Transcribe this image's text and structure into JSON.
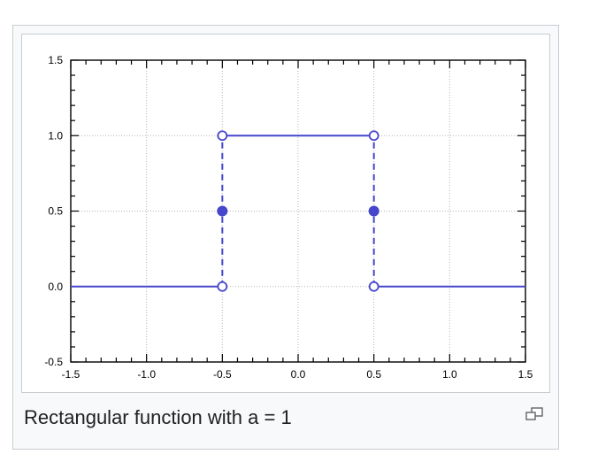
{
  "caption": "Rectangular function with a = 1",
  "icons": {
    "magnify": "magnify-clip-icon"
  },
  "colors": {
    "series": "#4646cc",
    "frame": "#000000",
    "grid": "#b4b4b4",
    "border": "#c8ccd1"
  },
  "chart_data": {
    "type": "line",
    "title": "",
    "xlabel": "",
    "ylabel": "",
    "xlim": [
      -1.5,
      1.5
    ],
    "ylim": [
      -0.5,
      1.5
    ],
    "x_ticks": [
      "-1.5",
      "-1.0",
      "-0.5",
      "0.0",
      "0.5",
      "1.0",
      "1.5"
    ],
    "y_ticks": [
      "-0.5",
      "0.0",
      "0.5",
      "1.0",
      "1.5"
    ],
    "grid": true,
    "segments": [
      {
        "style": "solid",
        "points": [
          [
            -1.5,
            0
          ],
          [
            -0.5,
            0
          ]
        ]
      },
      {
        "style": "solid",
        "points": [
          [
            -0.5,
            1
          ],
          [
            0.5,
            1
          ]
        ]
      },
      {
        "style": "solid",
        "points": [
          [
            0.5,
            0
          ],
          [
            1.5,
            0
          ]
        ]
      },
      {
        "style": "dashed",
        "points": [
          [
            -0.5,
            0
          ],
          [
            -0.5,
            1
          ]
        ]
      },
      {
        "style": "dashed",
        "points": [
          [
            0.5,
            0
          ],
          [
            0.5,
            1
          ]
        ]
      }
    ],
    "open_points": [
      [
        -0.5,
        1
      ],
      [
        0.5,
        1
      ],
      [
        -0.5,
        0
      ],
      [
        0.5,
        0
      ]
    ],
    "filled_points": [
      [
        -0.5,
        0.5
      ],
      [
        0.5,
        0.5
      ]
    ]
  }
}
